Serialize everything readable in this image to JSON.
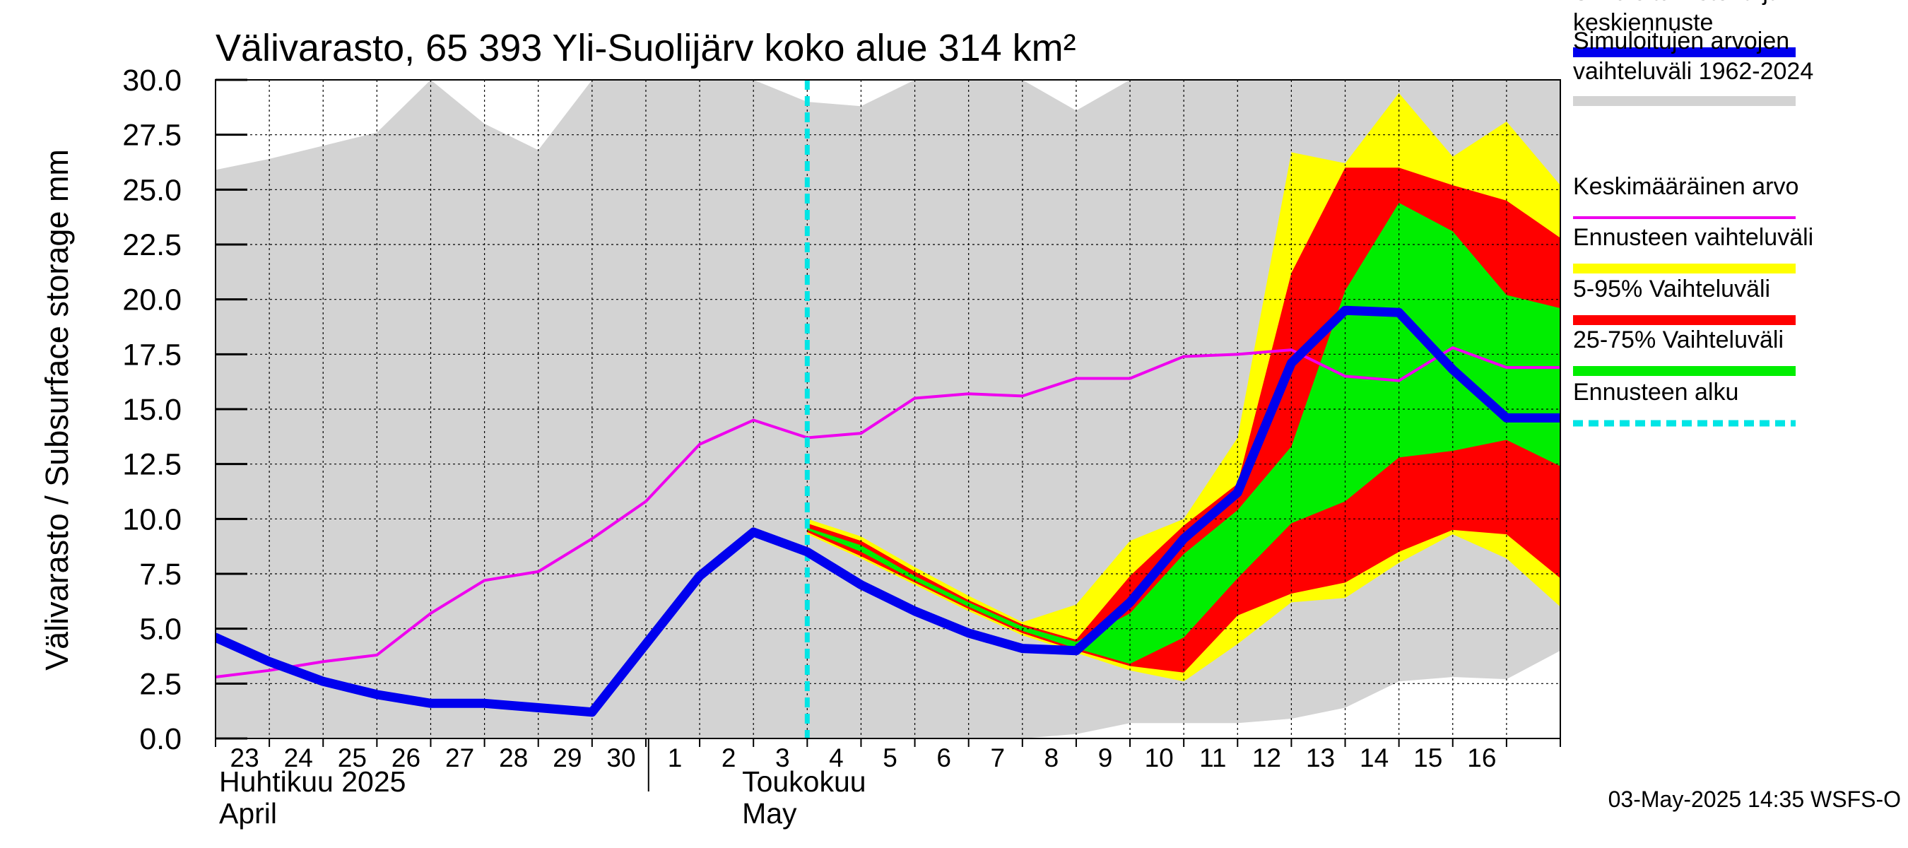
{
  "chart_data": {
    "type": "area",
    "title": "Välivarasto, 65 393 Yli-Suolijärv koko alue 314 km²",
    "ylabel": "Välivarasto / Subsurface storage  mm",
    "ylim": [
      0,
      30
    ],
    "yticks": [
      "0.0",
      "2.5",
      "5.0",
      "7.5",
      "10.0",
      "12.5",
      "15.0",
      "17.5",
      "20.0",
      "22.5",
      "25.0",
      "27.5",
      "30.0"
    ],
    "x_dates": [
      "2025-04-22",
      "2025-04-23",
      "2025-04-24",
      "2025-04-25",
      "2025-04-26",
      "2025-04-27",
      "2025-04-28",
      "2025-04-29",
      "2025-04-30",
      "2025-05-01",
      "2025-05-02",
      "2025-05-03",
      "2025-05-04",
      "2025-05-05",
      "2025-05-06",
      "2025-05-07",
      "2025-05-08",
      "2025-05-09",
      "2025-05-10",
      "2025-05-11",
      "2025-05-12",
      "2025-05-13",
      "2025-05-14",
      "2025-05-15",
      "2025-05-16",
      "2025-05-17"
    ],
    "x_tick_labels": [
      "23",
      "24",
      "25",
      "26",
      "27",
      "28",
      "29",
      "30",
      "1",
      "2",
      "3",
      "4",
      "5",
      "6",
      "7",
      "8",
      "9",
      "10",
      "11",
      "12",
      "13",
      "14",
      "15",
      "16"
    ],
    "month_labels": [
      {
        "line1": "Huhtikuu  2025",
        "line2": "April"
      },
      {
        "line1": "Toukokuu",
        "line2": "May"
      }
    ],
    "forecast_start": "2025-05-03",
    "grid": true,
    "legend_position": "right",
    "series": [
      {
        "name": "Simuloitujen arvojen vaihteluväli 1962-2024",
        "kind": "band",
        "color": "#d3d3d3",
        "upper": [
          25.9,
          26.4,
          27.0,
          27.6,
          30.0,
          28.0,
          26.8,
          30.0,
          30.0,
          30.0,
          30.0,
          29.0,
          28.8,
          30.0,
          30.0,
          30.0,
          28.6,
          30.0,
          30.0,
          30.0,
          30.0,
          30.0,
          30.0,
          30.0,
          30.0,
          30.0
        ],
        "lower": [
          0.0,
          0.0,
          0.0,
          0.0,
          0.0,
          0.0,
          0.0,
          0.0,
          0.0,
          0.0,
          0.0,
          0.0,
          0.0,
          0.0,
          0.0,
          0.0,
          0.2,
          0.7,
          0.7,
          0.7,
          0.9,
          1.4,
          2.6,
          2.8,
          2.7,
          4.0
        ]
      },
      {
        "name": "Ennusteen vaihteluväli",
        "kind": "band",
        "color": "#ffff00",
        "dates": [
          "2025-05-03",
          "2025-05-04",
          "2025-05-05",
          "2025-05-06",
          "2025-05-07",
          "2025-05-08",
          "2025-05-09",
          "2025-05-10",
          "2025-05-11",
          "2025-05-12",
          "2025-05-13",
          "2025-05-14",
          "2025-05-15",
          "2025-05-16",
          "2025-05-17"
        ],
        "upper": [
          10.0,
          9.2,
          7.8,
          6.5,
          5.3,
          6.1,
          9.0,
          10.0,
          13.7,
          26.7,
          26.2,
          29.4,
          26.5,
          28.1,
          25.2
        ],
        "lower": [
          9.3,
          8.2,
          7.0,
          5.8,
          4.7,
          3.9,
          3.1,
          2.6,
          4.3,
          6.2,
          6.4,
          8.0,
          9.3,
          8.2,
          6.0
        ]
      },
      {
        "name": "5-95% Vaihteluväli",
        "kind": "band",
        "color": "#ff0000",
        "dates": [
          "2025-05-03",
          "2025-05-04",
          "2025-05-05",
          "2025-05-06",
          "2025-05-07",
          "2025-05-08",
          "2025-05-09",
          "2025-05-10",
          "2025-05-11",
          "2025-05-12",
          "2025-05-13",
          "2025-05-14",
          "2025-05-15",
          "2025-05-16",
          "2025-05-17"
        ],
        "upper": [
          9.8,
          9.0,
          7.6,
          6.3,
          5.2,
          4.5,
          7.4,
          9.7,
          11.6,
          21.2,
          26.0,
          26.0,
          25.2,
          24.5,
          22.8
        ],
        "lower": [
          9.4,
          8.3,
          7.1,
          5.9,
          4.8,
          4.0,
          3.3,
          3.0,
          5.6,
          6.6,
          7.1,
          8.5,
          9.5,
          9.3,
          7.3
        ]
      },
      {
        "name": "25-75% Vaihteluväli",
        "kind": "band",
        "color": "#00ee00",
        "dates": [
          "2025-05-03",
          "2025-05-04",
          "2025-05-05",
          "2025-05-06",
          "2025-05-07",
          "2025-05-08",
          "2025-05-09",
          "2025-05-10",
          "2025-05-11",
          "2025-05-12",
          "2025-05-13",
          "2025-05-14",
          "2025-05-15",
          "2025-05-16",
          "2025-05-17"
        ],
        "upper": [
          9.6,
          8.8,
          7.4,
          6.2,
          5.1,
          4.4,
          5.7,
          8.4,
          10.4,
          13.3,
          20.4,
          24.4,
          23.1,
          20.2,
          19.6
        ],
        "lower": [
          9.5,
          8.5,
          7.2,
          6.0,
          4.9,
          4.1,
          3.4,
          4.6,
          7.3,
          9.8,
          10.8,
          12.8,
          13.1,
          13.6,
          12.4
        ]
      },
      {
        "name": "Keskimääräinen arvo",
        "kind": "line",
        "color": "#ee00ee",
        "values": [
          2.8,
          3.1,
          3.5,
          3.8,
          5.7,
          7.2,
          7.6,
          9.1,
          10.8,
          13.4,
          14.5,
          13.7,
          13.9,
          15.5,
          15.7,
          15.6,
          16.4,
          16.4,
          17.4,
          17.5,
          17.7,
          16.5,
          16.3,
          17.8,
          16.9,
          16.9
        ]
      },
      {
        "name": "Simuloitu historia ja keskiennuste",
        "kind": "line",
        "color": "#0000ee",
        "values": [
          4.6,
          3.5,
          2.6,
          2.0,
          1.6,
          1.6,
          1.4,
          1.2,
          4.3,
          7.4,
          9.4,
          8.5,
          7.0,
          5.8,
          4.8,
          4.1,
          4.0,
          6.2,
          9.1,
          11.2,
          17.1,
          19.5,
          19.4,
          16.8,
          14.6,
          14.6
        ]
      }
    ],
    "legend": [
      {
        "label": "Simuloitu historia ja keskiennuste",
        "color": "#0000ee",
        "style": "thick"
      },
      {
        "label": "Simuloitujen arvojen vaihteluväli 1962-2024",
        "color": "#d3d3d3",
        "style": "thick"
      },
      {
        "label": "Keskimääräinen arvo",
        "color": "#ee00ee",
        "style": "thin"
      },
      {
        "label": "Ennusteen vaihteluväli",
        "color": "#ffff00",
        "style": "thick"
      },
      {
        "label": "5-95% Vaihteluväli",
        "color": "#ff0000",
        "style": "thick"
      },
      {
        "label": "25-75% Vaihteluväli",
        "color": "#00ee00",
        "style": "thick"
      },
      {
        "label": "Ennusteen alku",
        "color": "#00e5e5",
        "style": "dashed"
      }
    ],
    "legend_text": [
      [
        "Simuloitu historia ja",
        "keskiennuste"
      ],
      [
        "Simuloitujen arvojen",
        "vaihteluväli 1962-2024"
      ],
      [
        "Keskimääräinen arvo"
      ],
      [
        "Ennusteen vaihteluväli"
      ],
      [
        "5-95% Vaihteluväli"
      ],
      [
        "25-75% Vaihteluväli"
      ],
      [
        "Ennusteen alku"
      ]
    ],
    "timestamp": "03-May-2025 14:35 WSFS-O"
  }
}
